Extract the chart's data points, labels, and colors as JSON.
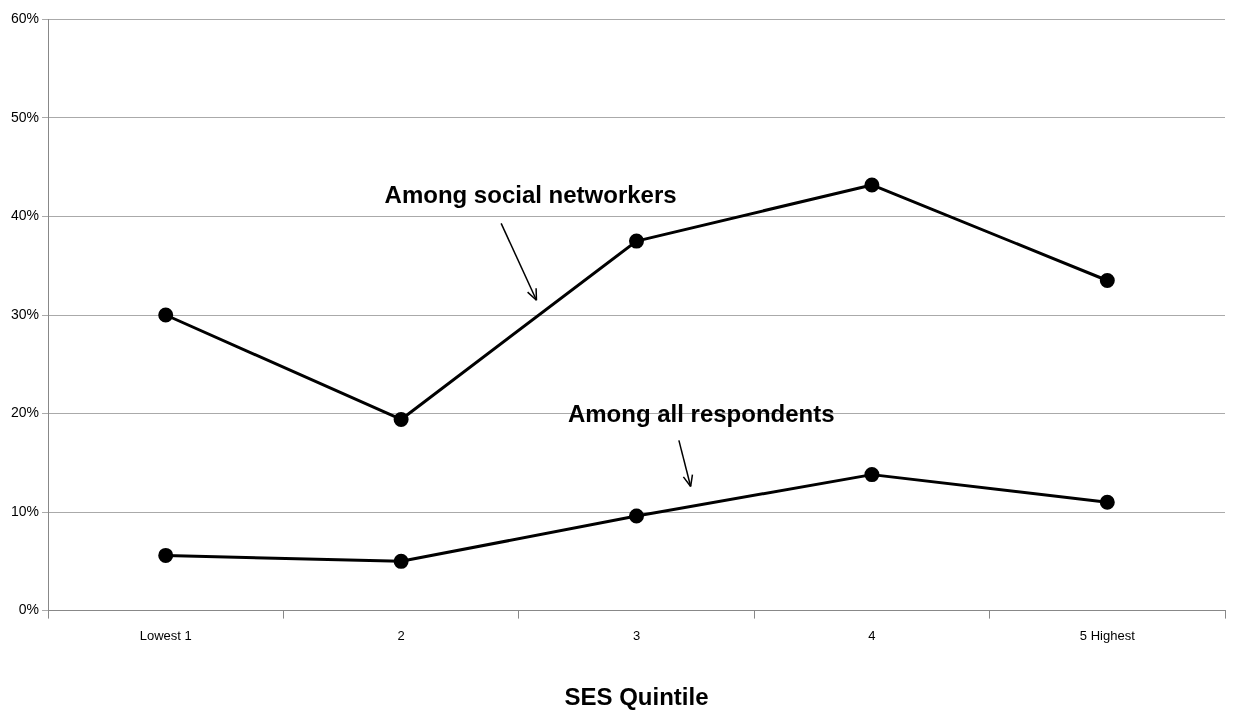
{
  "chart_data": {
    "type": "line",
    "xlabel": "SES Quintile",
    "categories": [
      "Lowest 1",
      "2",
      "3",
      "4",
      "5 Highest"
    ],
    "series": [
      {
        "name": "Among social networkers",
        "color": "#000000",
        "values": [
          30.0,
          19.4,
          37.5,
          43.2,
          33.5
        ]
      },
      {
        "name": "Among all respondents",
        "color": "#000000",
        "values": [
          5.6,
          5.0,
          9.6,
          13.8,
          11.0
        ]
      }
    ],
    "ylim": [
      0,
      60
    ],
    "yticks": [
      {
        "value": 0,
        "label": "0%"
      },
      {
        "value": 10,
        "label": "10%"
      },
      {
        "value": 20,
        "label": "20%"
      },
      {
        "value": 30,
        "label": "30%"
      },
      {
        "value": 40,
        "label": "40%"
      },
      {
        "value": 50,
        "label": "50%"
      },
      {
        "value": 60,
        "label": "60%"
      }
    ],
    "grid": "y",
    "legend": false,
    "marker": "circle",
    "line_style": "solid"
  }
}
